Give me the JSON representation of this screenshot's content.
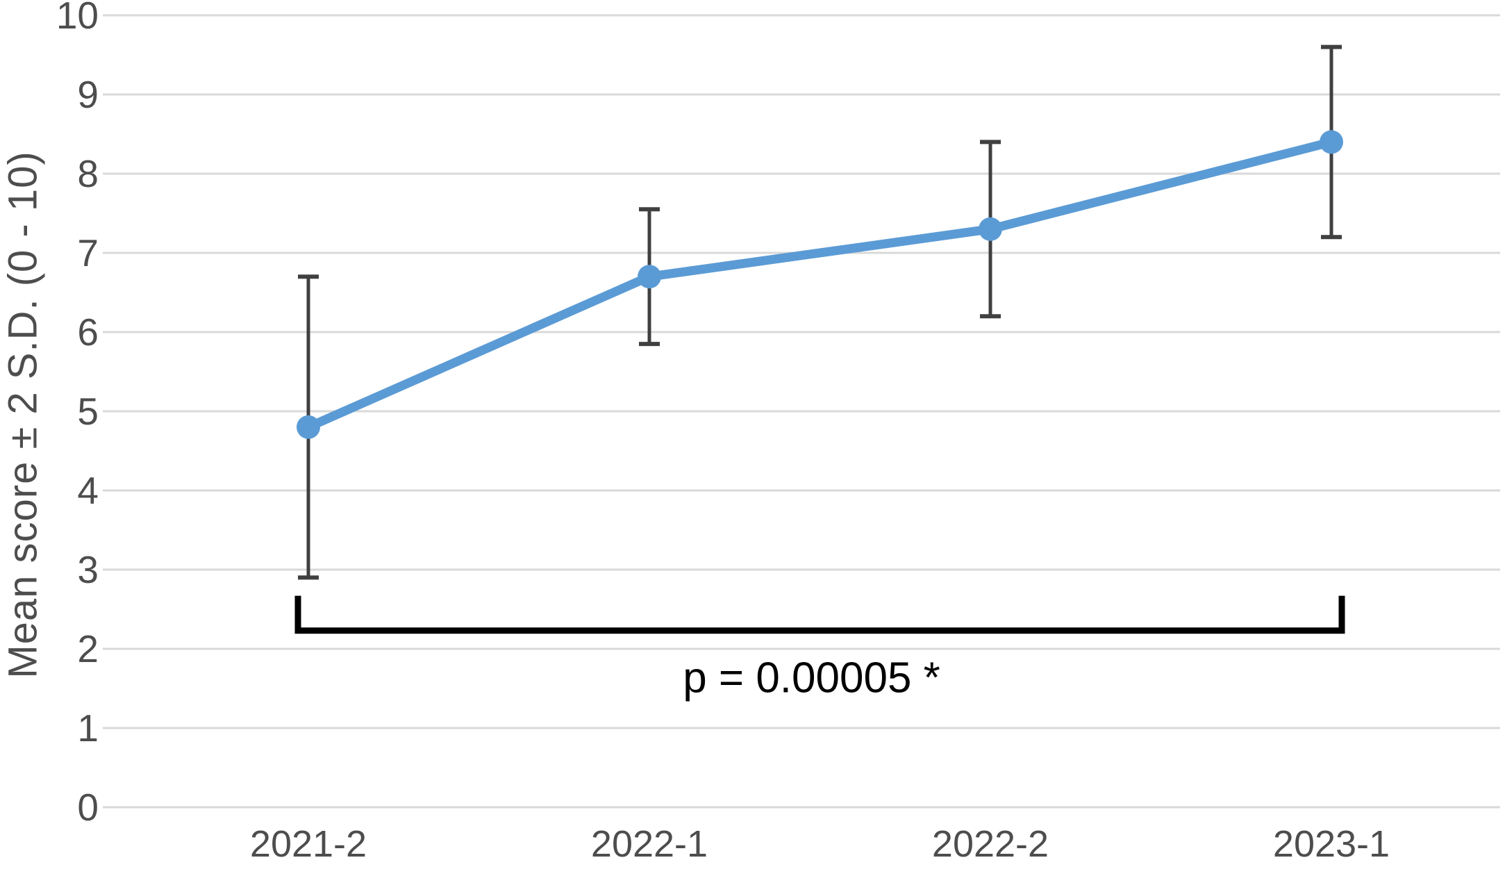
{
  "chart_data": {
    "type": "line",
    "categories": [
      "2021-2",
      "2022-1",
      "2022-2",
      "2023-1"
    ],
    "series": [
      {
        "name": "Mean score",
        "values": [
          4.8,
          6.7,
          7.3,
          8.4
        ],
        "error_low": [
          2.9,
          5.85,
          6.2,
          7.2
        ],
        "error_high": [
          6.7,
          7.55,
          8.4,
          9.6
        ]
      }
    ],
    "title": "",
    "xlabel": "",
    "ylabel": "Mean score ± 2 S.D. (0 - 10)",
    "ylim": [
      0,
      10
    ],
    "yticks": [
      0,
      1,
      2,
      3,
      4,
      5,
      6,
      7,
      8,
      9,
      10
    ],
    "grid": "horizontal",
    "legend": "none",
    "annotation": {
      "label": "p = 0.00005 *",
      "from_category": "2021-2",
      "to_category": "2023-1",
      "bracket_y": 2.23,
      "bracket_tick_top_y": 2.67,
      "label_y": 1.45
    },
    "colors": {
      "line": "#5B9BD5",
      "marker": "#5B9BD5",
      "error_bar": "#404040",
      "gridline": "#D9D9D9",
      "axis_text": "#4d4d4d",
      "annotation": "#000000"
    }
  }
}
